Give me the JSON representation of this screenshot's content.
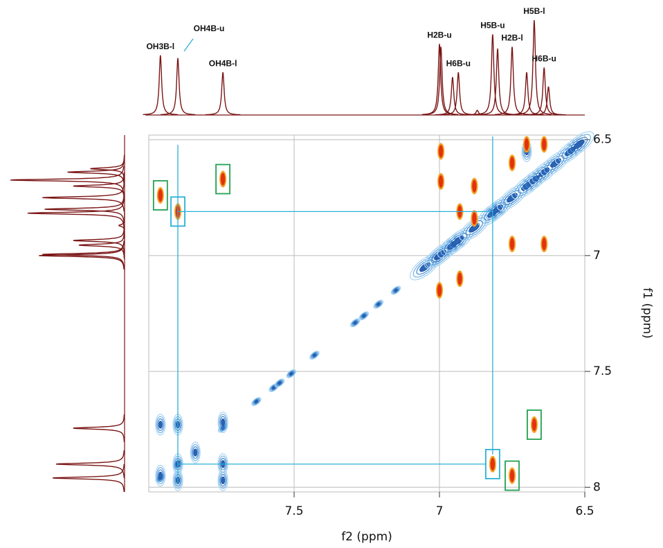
{
  "chart_data": {
    "type": "noesy",
    "xlabel": "f2 (ppm)",
    "ylabel": "f1 (ppm)",
    "xlim": [
      8.0,
      6.5
    ],
    "ylim": [
      6.48,
      8.02
    ],
    "xticks": [
      7.5,
      7.0,
      6.5
    ],
    "yticks": [
      6.5,
      7.0,
      7.5,
      8.0
    ],
    "grid": true,
    "projection": {
      "color": "#7a1414",
      "shifts": [
        7.96,
        7.9,
        7.745,
        7.0,
        6.995,
        6.955,
        6.935,
        6.87,
        6.817,
        6.8,
        6.75,
        6.7,
        6.674,
        6.64,
        6.625
      ],
      "heights": [
        0.63,
        0.6,
        0.45,
        0.75,
        0.72,
        0.4,
        0.45,
        0.05,
        0.85,
        0.7,
        0.72,
        0.45,
        1.0,
        0.5,
        0.3
      ],
      "labels": [
        "OH3B-l",
        "OH4B-u",
        "OH4B-l",
        "H2B-u",
        null,
        null,
        "H6B-u",
        null,
        "H5B-u",
        null,
        "H2B-l",
        null,
        "H5B-l",
        "H6B-u",
        null
      ]
    },
    "diagonal_color": "#2b63b5",
    "diagonal_peaks": [
      7.96,
      7.9,
      7.745,
      7.63,
      7.57,
      7.55,
      7.51,
      7.43,
      7.29,
      7.26,
      7.21,
      7.15,
      7.05,
      7.0,
      6.995,
      6.955,
      6.935,
      6.88,
      6.817,
      6.8,
      6.75,
      6.7,
      6.674,
      6.64,
      6.6,
      6.55,
      6.52
    ],
    "blue_cross_peaks": [
      [
        7.96,
        7.73
      ],
      [
        7.9,
        7.73
      ],
      [
        7.745,
        7.72
      ],
      [
        7.96,
        7.95
      ],
      [
        7.9,
        7.9
      ],
      [
        7.84,
        7.85
      ],
      [
        7.745,
        7.9
      ],
      [
        7.745,
        7.97
      ],
      [
        7.9,
        7.97
      ],
      [
        6.7,
        6.55
      ]
    ],
    "red_color": "#e2320f",
    "orange_color": "#f2a01e",
    "red_cross_peaks": [
      [
        7.96,
        6.74
      ],
      [
        7.9,
        6.81
      ],
      [
        7.745,
        6.67
      ],
      [
        6.817,
        7.9
      ],
      [
        6.75,
        7.95
      ],
      [
        6.674,
        7.73
      ],
      [
        6.995,
        6.68
      ],
      [
        6.995,
        6.55
      ],
      [
        6.93,
        6.81
      ],
      [
        6.88,
        6.7
      ],
      [
        6.88,
        6.84
      ],
      [
        6.75,
        6.6
      ],
      [
        6.75,
        6.95
      ],
      [
        6.7,
        6.52
      ],
      [
        6.64,
        6.95
      ],
      [
        6.64,
        6.52
      ],
      [
        7.0,
        7.15
      ],
      [
        6.93,
        7.1
      ]
    ],
    "boxes": [
      {
        "f2": 7.96,
        "f1": 6.74,
        "color": "#22a050"
      },
      {
        "f2": 7.745,
        "f1": 6.67,
        "color": "#22a050"
      },
      {
        "f2": 7.9,
        "f1": 6.81,
        "color": "#2ab0d8"
      },
      {
        "f2": 6.674,
        "f1": 7.73,
        "color": "#22a050"
      },
      {
        "f2": 6.817,
        "f1": 7.9,
        "color": "#2ab0d8"
      },
      {
        "f2": 6.75,
        "f1": 7.95,
        "color": "#22a050"
      }
    ]
  }
}
